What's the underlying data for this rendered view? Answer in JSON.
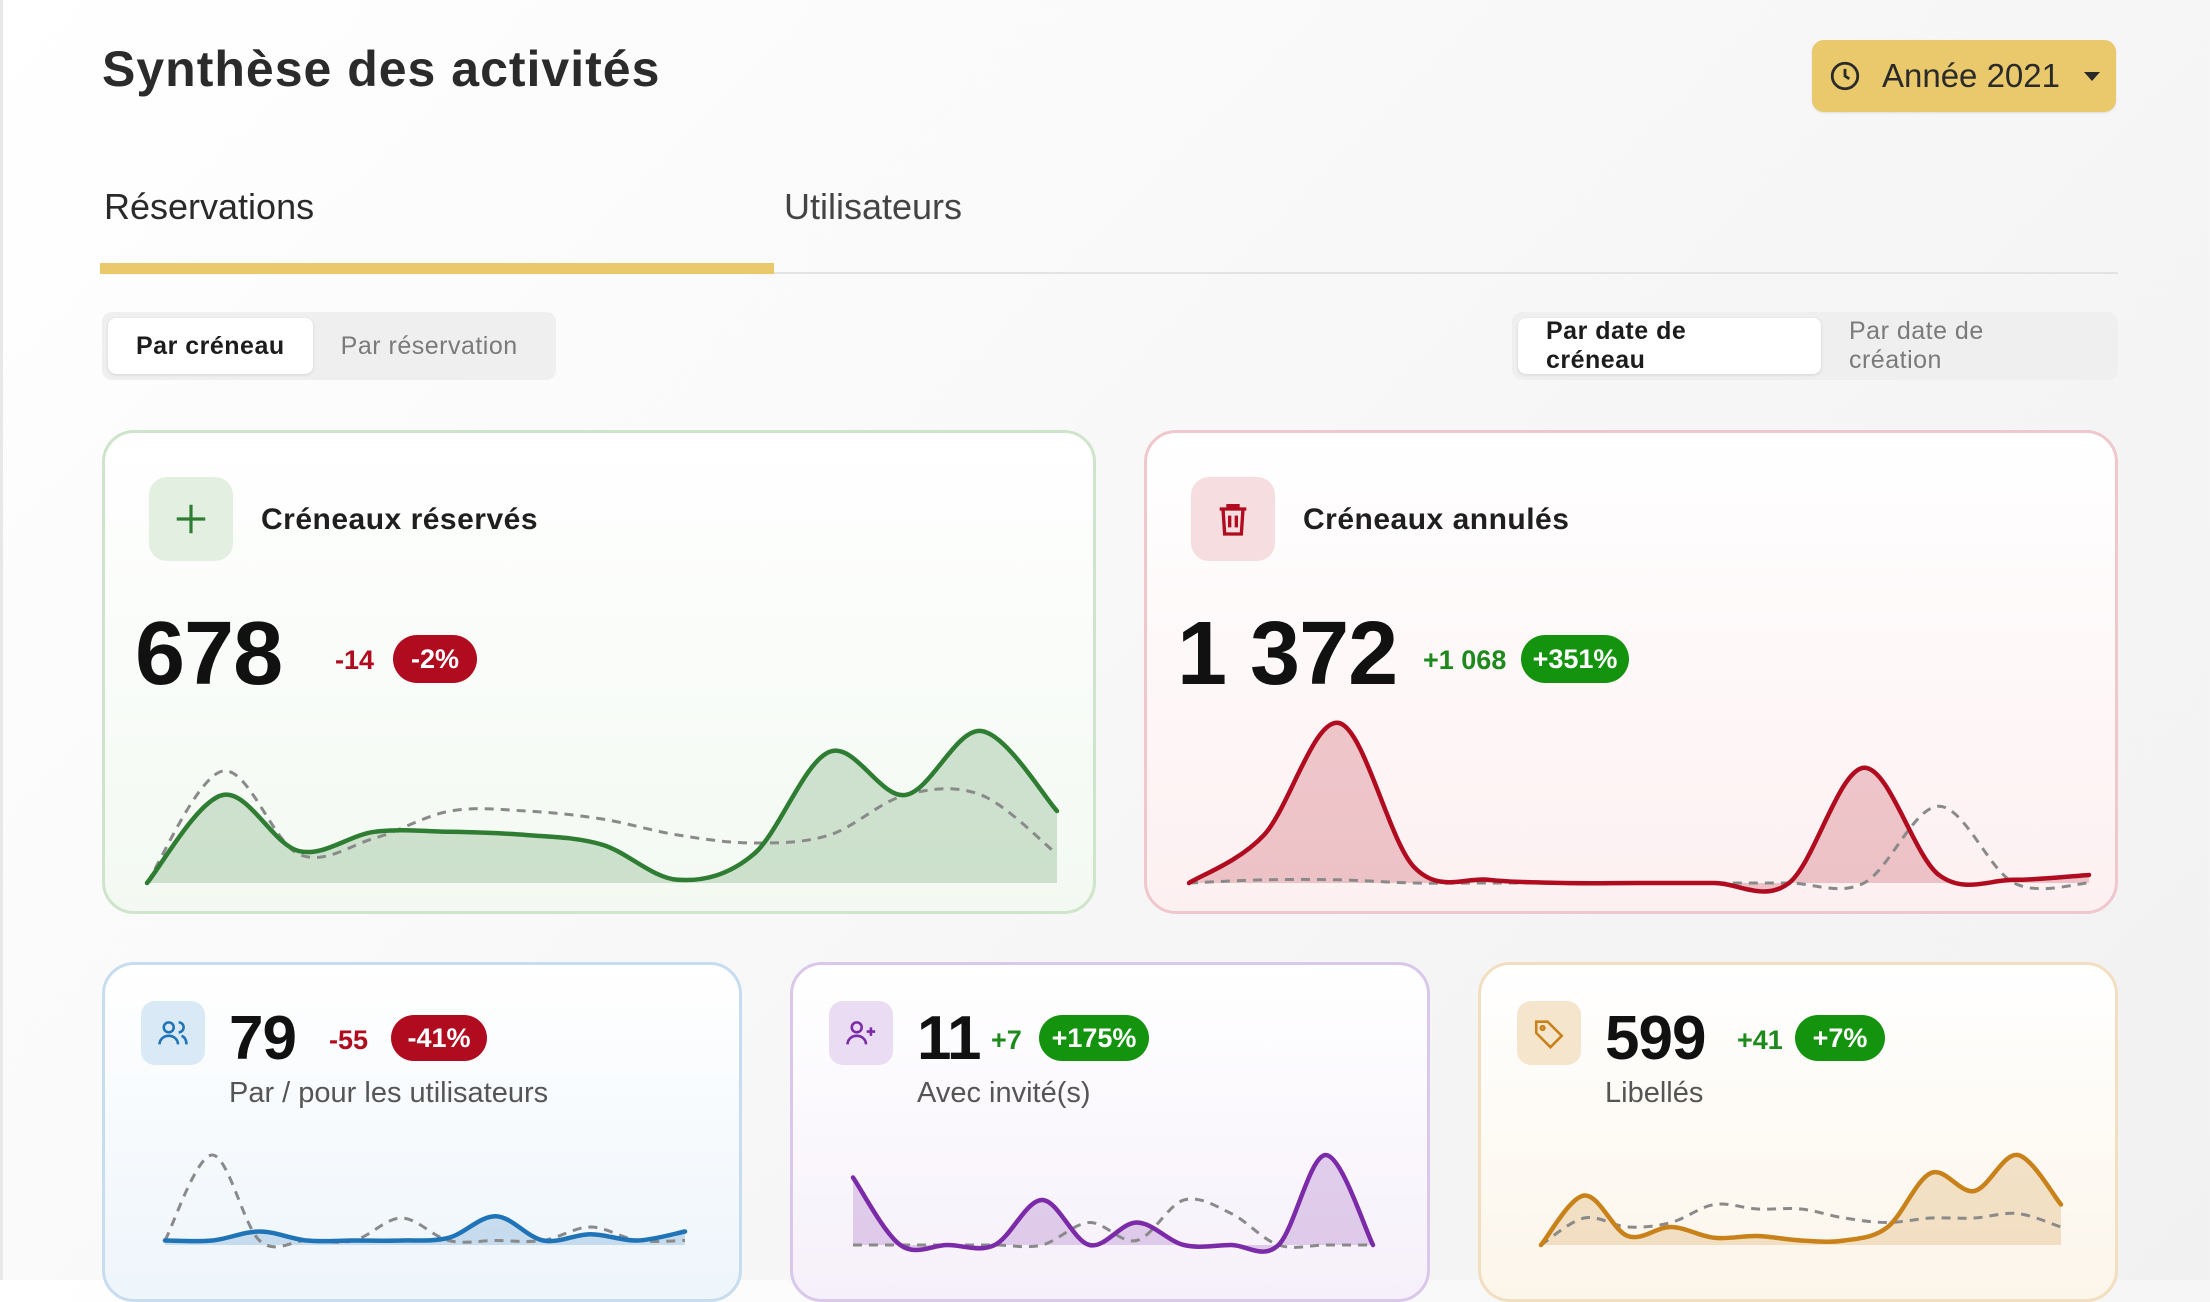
{
  "header": {
    "title": "Synthèse des activités",
    "year_label": "Année 2021"
  },
  "tabs": [
    {
      "label": "Réservations",
      "active": true
    },
    {
      "label": "Utilisateurs",
      "active": false
    }
  ],
  "toggle_left": {
    "options": [
      "Par créneau",
      "Par réservation"
    ],
    "selected": "Par créneau"
  },
  "toggle_right": {
    "options": [
      "Par date de créneau",
      "Par date de création"
    ],
    "selected": "Par date de créneau"
  },
  "cards": {
    "booked": {
      "title": "Créneaux réservés",
      "value": "678",
      "delta": "-14",
      "percent": "-2%",
      "color": "#2e7d32",
      "icon": "plus-icon",
      "current": [
        0.0,
        0.55,
        0.2,
        0.32,
        0.32,
        0.3,
        0.24,
        0.02,
        0.18,
        0.82,
        0.55,
        0.95,
        0.45
      ],
      "previous": [
        0.0,
        0.7,
        0.18,
        0.28,
        0.45,
        0.45,
        0.4,
        0.3,
        0.25,
        0.3,
        0.55,
        0.55,
        0.18
      ]
    },
    "cancelled": {
      "title": "Créneaux annulés",
      "value": "1 372",
      "delta": "+1 068",
      "percent": "+351%",
      "color": "#b00b1e",
      "icon": "trash-icon",
      "current": [
        0.0,
        0.3,
        1.0,
        0.1,
        0.02,
        0.0,
        0.0,
        0.0,
        0.0,
        0.72,
        0.05,
        0.02,
        0.05
      ],
      "previous": [
        0.0,
        0.02,
        0.02,
        0.0,
        0.0,
        0.0,
        0.0,
        0.0,
        0.0,
        0.0,
        0.48,
        0.0,
        0.0
      ]
    },
    "users": {
      "value": "79",
      "delta": "-55",
      "percent": "-41%",
      "label": "Par / pour les utilisateurs",
      "color": "#1f74b8",
      "icon": "users-icon",
      "current": [
        0.05,
        0.05,
        0.15,
        0.05,
        0.05,
        0.05,
        0.08,
        0.32,
        0.05,
        0.12,
        0.05,
        0.15
      ],
      "previous": [
        0.05,
        1.0,
        0.05,
        0.05,
        0.05,
        0.3,
        0.05,
        0.05,
        0.05,
        0.2,
        0.05,
        0.05
      ]
    },
    "guests": {
      "value": "11",
      "delta": "+7",
      "percent": "+175%",
      "label": "Avec invité(s)",
      "color": "#7b2aa8",
      "icon": "user-plus-icon",
      "current": [
        0.75,
        0.0,
        0.0,
        0.0,
        0.5,
        0.0,
        0.25,
        0.0,
        0.0,
        0.0,
        1.0,
        0.0
      ],
      "previous": [
        0.0,
        0.0,
        0.0,
        0.0,
        0.0,
        0.25,
        0.05,
        0.5,
        0.35,
        0.0,
        0.0,
        0.0
      ]
    },
    "labels": {
      "value": "599",
      "delta": "+41",
      "percent": "+7%",
      "label": "Libellés",
      "color": "#c9811a",
      "icon": "tag-icon",
      "current": [
        0.0,
        0.55,
        0.1,
        0.2,
        0.08,
        0.1,
        0.05,
        0.05,
        0.2,
        0.8,
        0.6,
        1.0,
        0.45
      ],
      "previous": [
        0.0,
        0.3,
        0.2,
        0.25,
        0.45,
        0.4,
        0.4,
        0.3,
        0.25,
        0.3,
        0.3,
        0.35,
        0.2
      ]
    }
  }
}
